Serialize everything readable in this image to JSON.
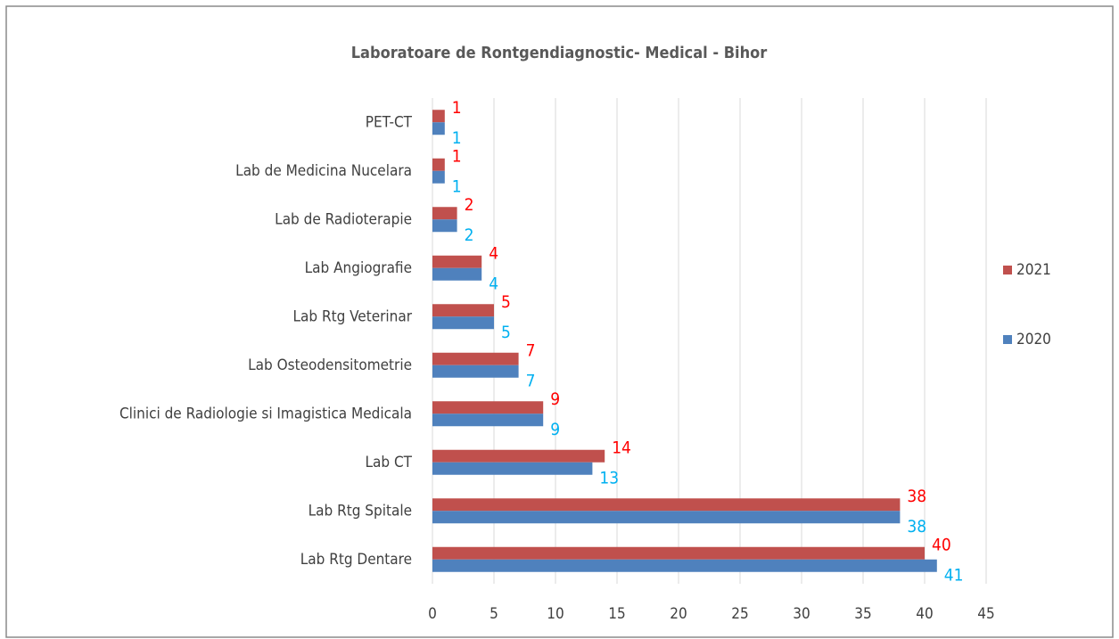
{
  "chart_data": {
    "type": "barh",
    "title": "Laboratoare de Rontgendiagnostic- Medical - Bihor",
    "categories": [
      "PET-CT",
      "Lab de Medicina Nucelara",
      "Lab de Radioterapie",
      "Lab Angiografie",
      "Lab Rtg Veterinar",
      "Lab Osteodensitometrie",
      "Clinici de Radiologie si Imagistica Medicala",
      "Lab CT",
      "Lab Rtg Spitale",
      "Lab Rtg Dentare"
    ],
    "series": [
      {
        "name": "2021",
        "color": "#c0504d",
        "label_color": "#ff0000",
        "values": [
          1,
          1,
          2,
          4,
          5,
          7,
          9,
          14,
          38,
          40
        ]
      },
      {
        "name": "2020",
        "color": "#4f81bd",
        "label_color": "#00b0f0",
        "values": [
          1,
          1,
          2,
          4,
          5,
          7,
          9,
          13,
          38,
          41
        ]
      }
    ],
    "xlim": [
      0,
      45
    ],
    "xticks": [
      0,
      5,
      10,
      15,
      20,
      25,
      30,
      35,
      40,
      45
    ],
    "grid": true,
    "legend": "right"
  }
}
